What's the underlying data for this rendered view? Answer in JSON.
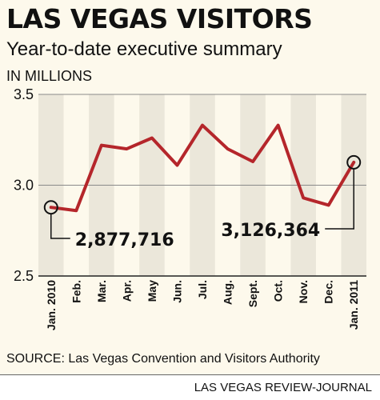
{
  "header": {
    "title": "LAS VEGAS VISITORS",
    "subtitle": "Year-to-date executive summary",
    "units": "IN MILLIONS"
  },
  "footer": {
    "source": "SOURCE:  Las Vegas Convention and Visitors Authority",
    "credit": "LAS VEGAS REVIEW-JOURNAL"
  },
  "colors": {
    "line": "#b5262b",
    "band": "#ebe7da",
    "background": "#fdf9ec"
  },
  "chart_data": {
    "type": "line",
    "title": "LAS VEGAS VISITORS",
    "subtitle": "Year-to-date executive summary",
    "ylabel": "IN MILLIONS",
    "xlabel": "",
    "categories": [
      "Jan. 2010",
      "Feb.",
      "Mar.",
      "Apr.",
      "May",
      "Jun.",
      "Jul.",
      "Aug.",
      "Sept.",
      "Oct.",
      "Nov.",
      "Dec.",
      "Jan. 2011"
    ],
    "series": [
      {
        "values": [
          2.878,
          2.86,
          3.22,
          3.2,
          3.26,
          3.11,
          3.33,
          3.2,
          3.13,
          3.33,
          2.93,
          2.89,
          3.126
        ]
      }
    ],
    "ylim": [
      2.5,
      3.5
    ],
    "yticks": [
      "2.5",
      "3.0",
      "3.5"
    ],
    "ytick_values": [
      2.5,
      3.0,
      3.5
    ],
    "grid": true,
    "alternating_bands": true,
    "annotations": [
      {
        "index": 0,
        "text": "2,877,716"
      },
      {
        "index": 12,
        "text": "3,126,364"
      }
    ]
  }
}
